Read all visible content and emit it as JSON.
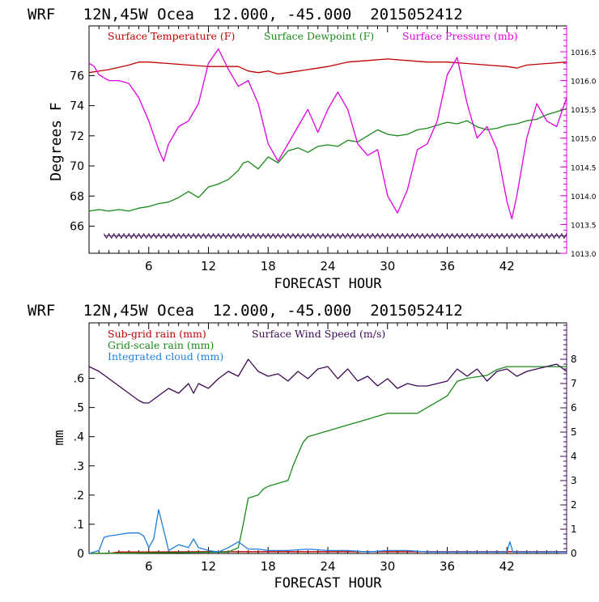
{
  "colors": {
    "temperature": "#c00000",
    "dewpoint": "#1a8a1a",
    "pressure": "#e000e0",
    "subgrid_rain": "#c00000",
    "grid_rain": "#1a8a1a",
    "cloud": "#1e7fe0",
    "wind": "#3c0a55",
    "axis": "#000000"
  },
  "chart_data": [
    {
      "type": "line",
      "title": "WRF   12N,45W Ocea  12.000, -45.000  2015052412",
      "xlabel": "FORECAST HOUR",
      "ylabel": "Degrees F",
      "x_ticks": [
        6,
        12,
        18,
        24,
        30,
        36,
        42
      ],
      "xlim": [
        0,
        48
      ],
      "ylim": [
        64.2,
        79.3
      ],
      "y_ticks": [
        66,
        68,
        70,
        72,
        74,
        76
      ],
      "y2lim": [
        1013.0,
        1016.95
      ],
      "y2_ticks": [
        1013.0,
        1013.5,
        1014.0,
        1014.5,
        1015.0,
        1015.5,
        1016.0,
        1016.5
      ],
      "y2_tick_labels": [
        "1013.0",
        "1013.5",
        "1014.0",
        "1014.5",
        "1015.0",
        "1015.5",
        "1016.0",
        "1016.5"
      ],
      "legend": [
        "Surface Temperature (F)",
        "Surface Dewpoint (F)",
        "Surface Pressure (mb)"
      ],
      "series": [
        {
          "name": "Surface Temperature (F)",
          "axis": "left",
          "color": "#c00000",
          "x": [
            0,
            2,
            4,
            5,
            6,
            8,
            10,
            12,
            13,
            14,
            15,
            16,
            17,
            18,
            19,
            20,
            22,
            24,
            26,
            28,
            30,
            32,
            34,
            36,
            38,
            40,
            42,
            43,
            44,
            46,
            48
          ],
          "y": [
            76.2,
            76.4,
            76.7,
            76.9,
            76.9,
            76.8,
            76.7,
            76.6,
            76.6,
            76.6,
            76.6,
            76.3,
            76.2,
            76.3,
            76.1,
            76.2,
            76.4,
            76.6,
            76.9,
            77.0,
            77.1,
            77.0,
            76.9,
            76.9,
            76.8,
            76.7,
            76.6,
            76.5,
            76.7,
            76.8,
            76.9
          ]
        },
        {
          "name": "Surface Dewpoint (F)",
          "axis": "left",
          "color": "#1a8a1a",
          "x": [
            0,
            1,
            2,
            3,
            4,
            5,
            6,
            7,
            8,
            9,
            10,
            11,
            12,
            13,
            14,
            15,
            15.5,
            16,
            17,
            18,
            19,
            20,
            21,
            22,
            23,
            24,
            25,
            26,
            27,
            28,
            29,
            30,
            31,
            32,
            33,
            34,
            35,
            36,
            37,
            38,
            39,
            40,
            41,
            42,
            43,
            44,
            45,
            46,
            47,
            48
          ],
          "y": [
            67.0,
            67.1,
            67.0,
            67.1,
            67.0,
            67.2,
            67.3,
            67.5,
            67.6,
            67.9,
            68.3,
            67.9,
            68.6,
            68.8,
            69.1,
            69.7,
            70.2,
            70.3,
            69.8,
            70.6,
            70.2,
            71.0,
            71.2,
            70.9,
            71.3,
            71.4,
            71.3,
            71.7,
            71.6,
            72.0,
            72.4,
            72.1,
            72.0,
            72.1,
            72.4,
            72.5,
            72.7,
            72.9,
            72.8,
            73.0,
            72.6,
            72.4,
            72.5,
            72.7,
            72.8,
            73.0,
            73.1,
            73.4,
            73.6,
            73.8
          ]
        },
        {
          "name": "Surface Pressure (mb)",
          "axis": "right",
          "color": "#e000e0",
          "x": [
            0,
            0.5,
            1,
            2,
            3,
            4,
            5,
            6,
            7,
            7.5,
            8,
            9,
            10,
            11,
            12,
            13,
            14,
            15,
            16,
            17,
            18,
            19,
            20,
            21,
            22,
            23,
            24,
            25,
            26,
            27,
            28,
            29,
            30,
            31,
            32,
            33,
            34,
            35,
            36,
            37,
            38,
            39,
            40,
            41,
            42,
            42.5,
            43,
            44,
            45,
            46,
            47,
            48
          ],
          "y": [
            1016.3,
            1016.25,
            1016.1,
            1016.0,
            1016.0,
            1015.95,
            1015.7,
            1015.3,
            1014.8,
            1014.6,
            1014.9,
            1015.2,
            1015.3,
            1015.6,
            1016.3,
            1016.55,
            1016.2,
            1015.9,
            1016.0,
            1015.6,
            1014.9,
            1014.6,
            1014.9,
            1015.2,
            1015.5,
            1015.1,
            1015.5,
            1015.8,
            1015.5,
            1014.9,
            1014.7,
            1014.8,
            1014.0,
            1013.7,
            1014.1,
            1014.8,
            1014.9,
            1015.3,
            1016.1,
            1016.4,
            1015.6,
            1015.0,
            1015.2,
            1014.8,
            1013.9,
            1013.6,
            1014.0,
            1015.0,
            1015.6,
            1015.3,
            1015.2,
            1015.7
          ]
        }
      ],
      "hatch_band": {
        "label": "",
        "y": 65.35,
        "amplitude": 0.15,
        "color": "#3c0a55"
      }
    },
    {
      "type": "line",
      "title": "WRF   12N,45W Ocea  12.000, -45.000  2015052412",
      "xlabel": "FORECAST HOUR",
      "ylabel": "mm",
      "x_ticks": [
        6,
        12,
        18,
        24,
        30,
        36,
        42
      ],
      "xlim": [
        0,
        48
      ],
      "ylim": [
        0,
        0.79
      ],
      "y_ticks": [
        0,
        0.1,
        0.2,
        0.3,
        0.4,
        0.5,
        0.6
      ],
      "y_tick_labels": [
        "0",
        ".1",
        ".2",
        ".3",
        ".4",
        ".5",
        ".6"
      ],
      "y2lim": [
        0,
        9.5
      ],
      "y2_ticks": [
        0,
        1,
        2,
        3,
        4,
        5,
        6,
        7,
        8
      ],
      "y2_tick_labels": [
        "0",
        "1",
        "2",
        "3",
        "4",
        "5",
        "6",
        "7",
        "8"
      ],
      "legend": [
        "Sub-grid rain (mm)",
        "Surface Wind Speed (m/s)",
        "Grid-scale rain (mm)",
        "Integrated cloud (mm)"
      ],
      "series": [
        {
          "name": "Sub-grid rain (mm)",
          "axis": "left",
          "color": "#c00000",
          "x": [
            0,
            2,
            3,
            6,
            12,
            48
          ],
          "y": [
            0,
            0,
            0.005,
            0.005,
            0.006,
            0.006
          ]
        },
        {
          "name": "Grid-scale rain (mm)",
          "axis": "left",
          "color": "#1a8a1a",
          "x": [
            0,
            14,
            15,
            15.5,
            16,
            17,
            17.5,
            18,
            19,
            20,
            20.5,
            21,
            21.5,
            22,
            23,
            24,
            25,
            26,
            27,
            28,
            29,
            30,
            33,
            34,
            35,
            36,
            37,
            38,
            40,
            41,
            42,
            48
          ],
          "y": [
            0,
            0.005,
            0.02,
            0.1,
            0.19,
            0.2,
            0.22,
            0.23,
            0.24,
            0.25,
            0.3,
            0.34,
            0.38,
            0.4,
            0.41,
            0.42,
            0.43,
            0.44,
            0.45,
            0.46,
            0.47,
            0.48,
            0.48,
            0.5,
            0.52,
            0.54,
            0.59,
            0.6,
            0.61,
            0.63,
            0.64,
            0.64
          ]
        },
        {
          "name": "Integrated cloud (mm)",
          "axis": "left",
          "color": "#1e7fe0",
          "x": [
            0,
            1,
            1.5,
            2,
            3,
            4,
            5,
            5.5,
            6,
            6.5,
            7,
            7.5,
            8,
            9,
            10,
            10.5,
            11,
            12,
            13,
            14,
            15,
            16,
            17,
            18,
            20,
            22,
            24,
            26,
            28,
            30,
            32,
            34,
            36,
            38,
            40,
            42,
            42.3,
            42.6,
            44,
            46,
            48
          ],
          "y": [
            0,
            0.01,
            0.055,
            0.06,
            0.065,
            0.07,
            0.07,
            0.06,
            0.02,
            0.05,
            0.15,
            0.08,
            0.01,
            0.03,
            0.02,
            0.05,
            0.02,
            0.01,
            0.005,
            0.02,
            0.04,
            0.015,
            0.015,
            0.01,
            0.01,
            0.015,
            0.01,
            0.01,
            0.005,
            0.01,
            0.01,
            0.005,
            0.005,
            0.005,
            0.005,
            0.005,
            0.04,
            0.005,
            0.005,
            0.005,
            0.005
          ]
        },
        {
          "name": "Surface Wind Speed (m/s)",
          "axis": "right",
          "color": "#3c0a55",
          "x": [
            0,
            1,
            2,
            3,
            4,
            5,
            5.5,
            6,
            7,
            8,
            9,
            10,
            10.5,
            11,
            12,
            13,
            14,
            15,
            16,
            17,
            18,
            19,
            20,
            21,
            22,
            23,
            24,
            25,
            26,
            27,
            28,
            29,
            30,
            31,
            32,
            33,
            34,
            35,
            36,
            37,
            38,
            39,
            40,
            41,
            42,
            43,
            44,
            45,
            46,
            47,
            48
          ],
          "y": [
            7.7,
            7.5,
            7.2,
            6.9,
            6.6,
            6.3,
            6.2,
            6.2,
            6.5,
            6.8,
            6.6,
            7.0,
            6.6,
            7.0,
            6.8,
            7.2,
            7.5,
            7.3,
            8.0,
            7.5,
            7.3,
            7.4,
            7.1,
            7.5,
            7.2,
            7.6,
            7.7,
            7.2,
            7.6,
            7.1,
            7.3,
            6.9,
            7.2,
            6.8,
            7.0,
            6.9,
            6.9,
            7.0,
            7.1,
            7.6,
            7.3,
            7.6,
            7.1,
            7.5,
            7.6,
            7.3,
            7.5,
            7.6,
            7.7,
            7.8,
            7.5
          ]
        }
      ]
    }
  ]
}
